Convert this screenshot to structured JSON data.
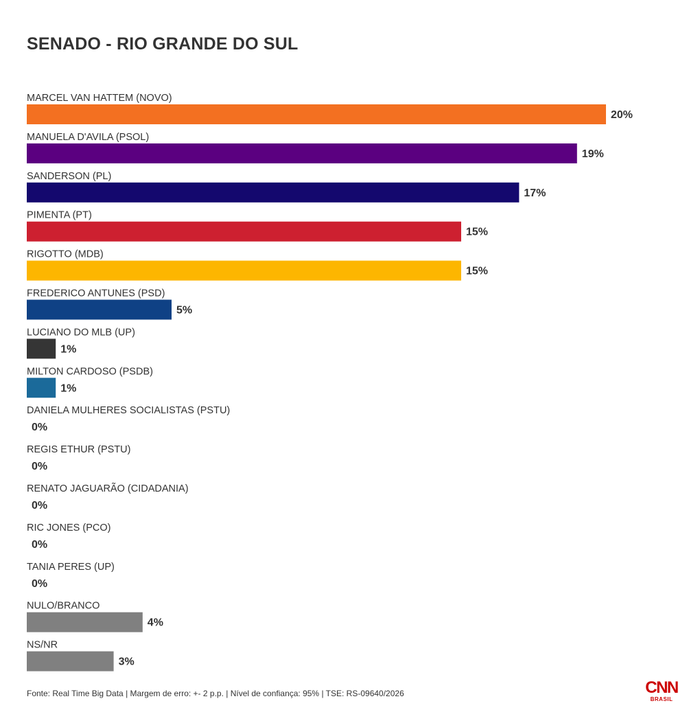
{
  "chart_data": {
    "type": "bar",
    "orientation": "horizontal",
    "title": "SENADO - RIO GRANDE DO SUL",
    "categories": [
      "MARCEL VAN HATTEM (NOVO)",
      "MANUELA D'AVILA (PSOL)",
      "SANDERSON (PL)",
      "PIMENTA (PT)",
      "RIGOTTO (MDB)",
      "FREDERICO ANTUNES (PSD)",
      "LUCIANO DO MLB (UP)",
      "MILTON CARDOSO (PSDB)",
      "DANIELA MULHERES SOCIALISTAS (PSTU)",
      "REGIS ETHUR (PSTU)",
      "RENATO JAGUARÃO (CIDADANIA)",
      "RIC JONES (PCO)",
      "TANIA PERES (UP)",
      "NULO/BRANCO",
      "NS/NR"
    ],
    "values": [
      20,
      19,
      17,
      15,
      15,
      5,
      1,
      1,
      0,
      0,
      0,
      0,
      0,
      4,
      3
    ],
    "value_labels": [
      "20%",
      "19%",
      "17%",
      "15%",
      "15%",
      "5%",
      "1%",
      "1%",
      "0%",
      "0%",
      "0%",
      "0%",
      "0%",
      "4%",
      "3%"
    ],
    "colors": [
      "#f37021",
      "#5b0080",
      "#14086e",
      "#cd2030",
      "#fdb600",
      "#0f4185",
      "#353535",
      "#1b6a9a",
      "#cccccc",
      "#cccccc",
      "#cccccc",
      "#cccccc",
      "#cccccc",
      "#808080",
      "#808080"
    ],
    "xlim": [
      0,
      20
    ],
    "grid": false,
    "legend": "none"
  },
  "source": "Fonte: Real Time Big Data | Margem de erro: +- 2 p.p. | Nível de confiança: 95% | TSE: RS-09640/2026",
  "logo": {
    "text": "CNN",
    "sub": "BRASIL"
  }
}
